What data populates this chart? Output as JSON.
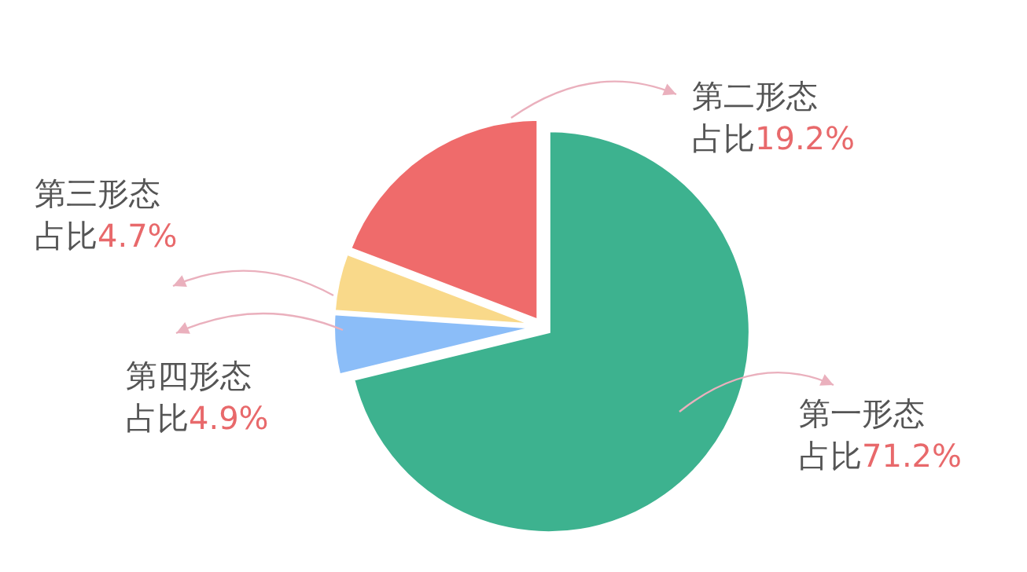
{
  "chart_data": {
    "type": "pie",
    "categories": [
      "第一形态",
      "第四形态",
      "第三形态",
      "第二形态"
    ],
    "values": [
      71.2,
      4.9,
      4.7,
      19.2
    ],
    "colors": [
      "#3db28f",
      "#8bbdf8",
      "#f9d98a",
      "#ef6b6b"
    ],
    "value_labels": [
      "占比71.2%",
      "占比4.9%",
      "占比4.7%",
      "占比19.2%"
    ],
    "legend": false
  }
}
